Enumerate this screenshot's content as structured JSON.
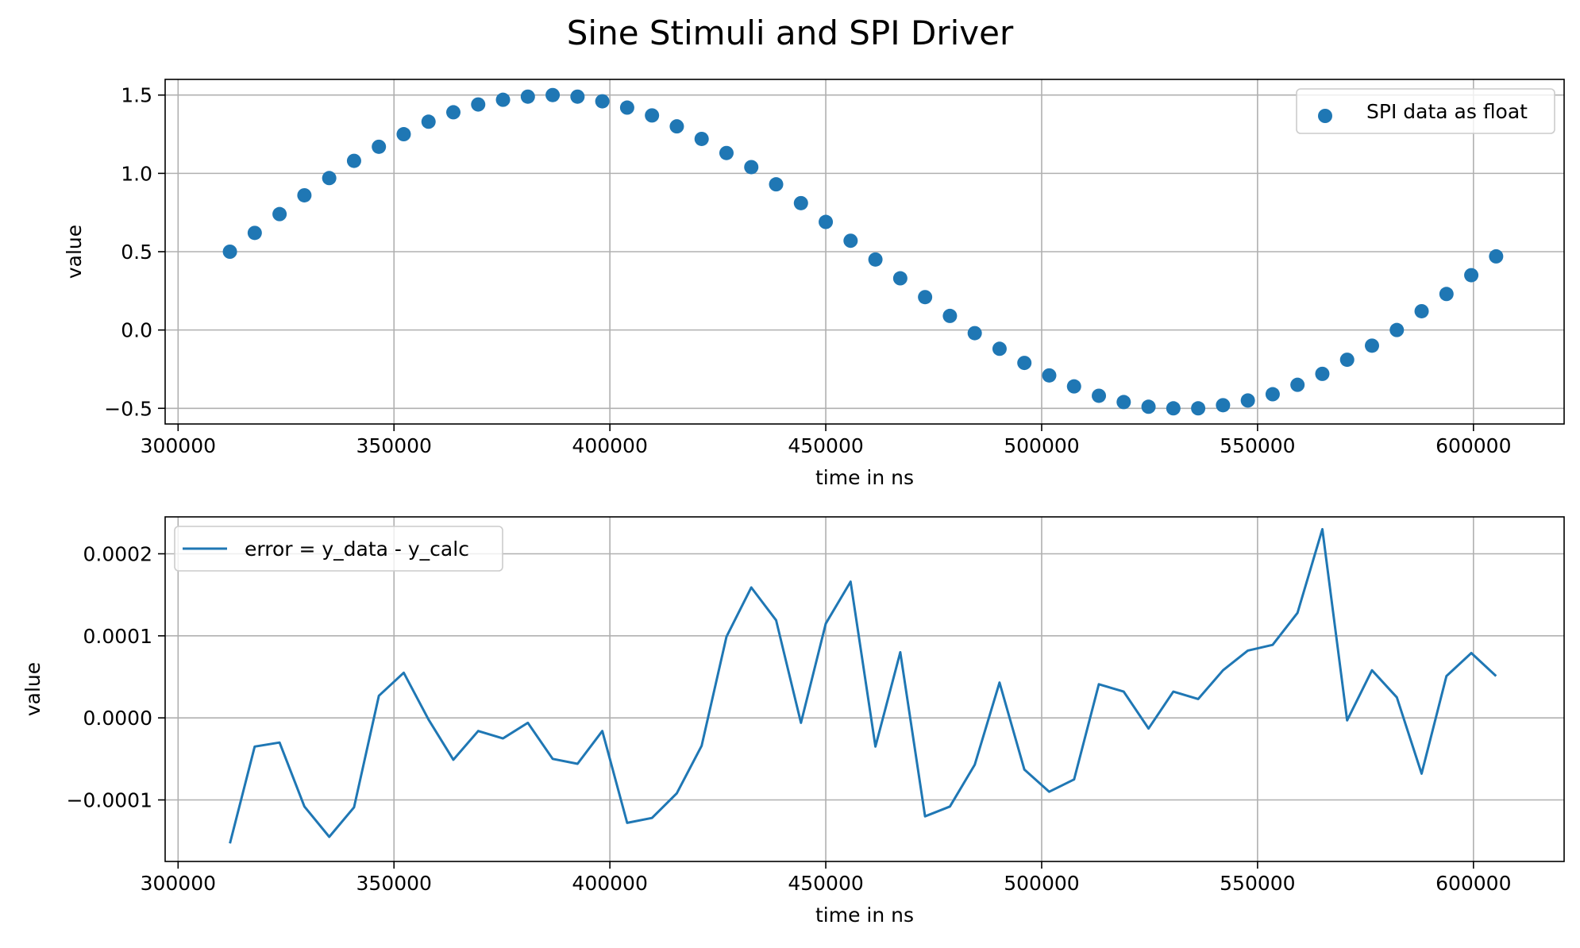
{
  "title": "Sine Stimuli and SPI Driver",
  "colors": {
    "series": "#1f77b4",
    "grid": "#b0b0b0",
    "axes": "#000000"
  },
  "chart_data": [
    {
      "type": "scatter",
      "xlabel": "time in ns",
      "ylabel": "value",
      "xlim": [
        297000,
        621000
      ],
      "ylim": [
        -0.6,
        1.6
      ],
      "xticks": [
        300000,
        350000,
        400000,
        450000,
        500000,
        550000,
        600000
      ],
      "xtick_labels": [
        "300000",
        "350000",
        "400000",
        "450000",
        "500000",
        "550000",
        "600000"
      ],
      "yticks": [
        -0.5,
        0.0,
        0.5,
        1.0,
        1.5
      ],
      "ytick_labels": [
        "−0.5",
        "0.0",
        "0.5",
        "1.0",
        "1.5"
      ],
      "grid": true,
      "legend_position": "top-right",
      "series": [
        {
          "name": "SPI data as float",
          "x": [
            312000,
            317750,
            323500,
            329250,
            335000,
            340750,
            346500,
            352250,
            358000,
            363750,
            369500,
            375250,
            381000,
            386750,
            392500,
            398250,
            404000,
            409750,
            415500,
            421250,
            427000,
            432750,
            438500,
            444250,
            450000,
            455750,
            461500,
            467250,
            473000,
            478750,
            484500,
            490250,
            496000,
            501750,
            507500,
            513250,
            519000,
            524750,
            530500,
            536250,
            542000,
            547750,
            553500,
            559250,
            565000,
            570750,
            576500,
            582250,
            588000,
            593750,
            599500,
            605250
          ],
          "y": [
            0.5,
            0.62,
            0.74,
            0.86,
            0.97,
            1.08,
            1.17,
            1.25,
            1.33,
            1.39,
            1.44,
            1.47,
            1.49,
            1.5,
            1.49,
            1.46,
            1.42,
            1.37,
            1.3,
            1.22,
            1.13,
            1.04,
            0.93,
            0.81,
            0.69,
            0.57,
            0.45,
            0.33,
            0.21,
            0.09,
            -0.02,
            -0.12,
            -0.21,
            -0.29,
            -0.36,
            -0.42,
            -0.46,
            -0.49,
            -0.5,
            -0.5,
            -0.48,
            -0.45,
            -0.41,
            -0.35,
            -0.28,
            -0.19,
            -0.1,
            0.0,
            0.12,
            0.23,
            0.35,
            0.47
          ]
        }
      ]
    },
    {
      "type": "line",
      "xlabel": "time in ns",
      "ylabel": "value",
      "xlim": [
        297000,
        621000
      ],
      "ylim": [
        -0.000175,
        0.000245
      ],
      "xticks": [
        300000,
        350000,
        400000,
        450000,
        500000,
        550000,
        600000
      ],
      "xtick_labels": [
        "300000",
        "350000",
        "400000",
        "450000",
        "500000",
        "550000",
        "600000"
      ],
      "yticks": [
        -0.0001,
        0.0,
        0.0001,
        0.0002
      ],
      "ytick_labels": [
        "−0.0001",
        "0.0000",
        "0.0001",
        "0.0002"
      ],
      "grid": true,
      "legend_position": "top-left",
      "series": [
        {
          "name": "error = y_data - y_calc",
          "x": [
            312000,
            317750,
            323500,
            329250,
            335000,
            340750,
            346500,
            352250,
            358000,
            363750,
            369500,
            375250,
            381000,
            386750,
            392500,
            398250,
            404000,
            409750,
            415500,
            421250,
            427000,
            432750,
            438500,
            444250,
            450000,
            455750,
            461500,
            467250,
            473000,
            478750,
            484500,
            490250,
            496000,
            501750,
            507500,
            513250,
            519000,
            524750,
            530500,
            536250,
            542000,
            547750,
            553500,
            559250,
            565000,
            570750,
            576500,
            582250,
            588000,
            593750,
            599500,
            605250
          ],
          "y": [
            -0.000153,
            -3.5e-05,
            -3e-05,
            -0.000108,
            -0.000145,
            -0.000109,
            2.7e-05,
            5.5e-05,
            -2e-06,
            -5.1e-05,
            -1.6e-05,
            -2.5e-05,
            -6e-06,
            -5e-05,
            -5.6e-05,
            -1.6e-05,
            -0.000128,
            -0.000122,
            -9.2e-05,
            -3.4e-05,
            9.9e-05,
            0.000159,
            0.000119,
            -6e-06,
            0.000115,
            0.000166,
            -3.5e-05,
            8e-05,
            -0.00012,
            -0.000108,
            -5.7e-05,
            4.3e-05,
            -6.3e-05,
            -9e-05,
            -7.5e-05,
            4.1e-05,
            3.2e-05,
            -1.3e-05,
            3.2e-05,
            2.3e-05,
            5.8e-05,
            8.2e-05,
            8.9e-05,
            0.000128,
            0.00023,
            -3e-06,
            5.8e-05,
            2.5e-05,
            -6.8e-05,
            5.1e-05,
            7.9e-05,
            5.1e-05
          ]
        }
      ]
    }
  ]
}
